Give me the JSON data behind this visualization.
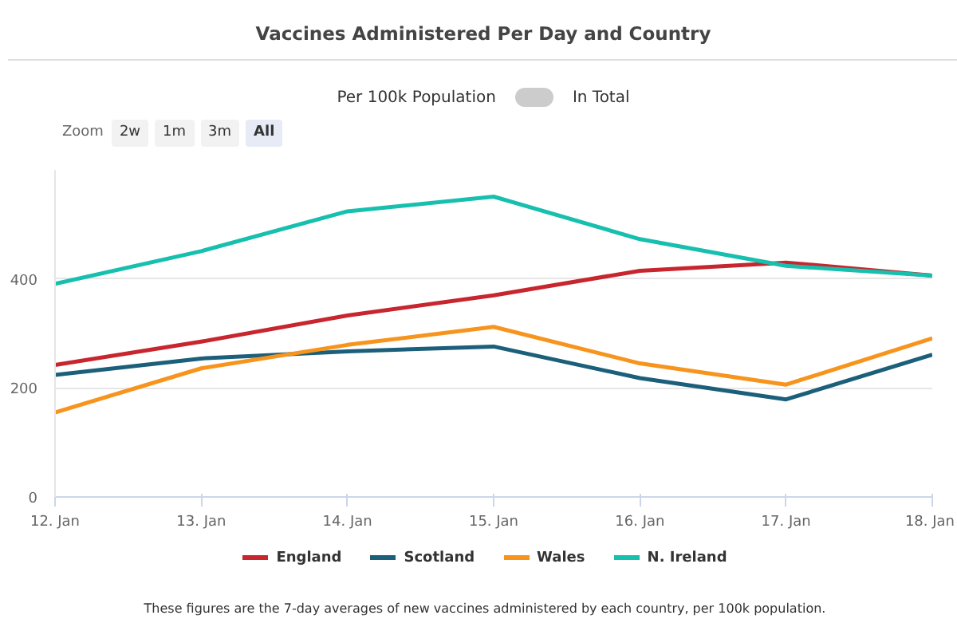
{
  "chart_data": {
    "type": "line",
    "title": "Vaccines Administered Per Day and Country",
    "categories": [
      "12. Jan",
      "13. Jan",
      "14. Jan",
      "15. Jan",
      "16. Jan",
      "17. Jan",
      "18. Jan"
    ],
    "series": [
      {
        "name": "England",
        "color": "#c8262e",
        "values": [
          242,
          285,
          333,
          370,
          415,
          430,
          406
        ]
      },
      {
        "name": "Scotland",
        "color": "#1b5f7a",
        "values": [
          224,
          254,
          267,
          276,
          218,
          179,
          261
        ]
      },
      {
        "name": "Wales",
        "color": "#f7941d",
        "values": [
          155,
          236,
          279,
          312,
          245,
          206,
          291
        ]
      },
      {
        "name": "N. Ireland",
        "color": "#16bfae",
        "values": [
          391,
          451,
          524,
          551,
          473,
          424,
          406
        ]
      }
    ],
    "ylim": [
      0,
      600
    ],
    "yticks": [
      0,
      200,
      400
    ],
    "grid": "y",
    "legend": "bottom",
    "line_style": "solid",
    "annotations": [
      "Per 100k Population",
      "In Total",
      "Zoom",
      "2w",
      "1m",
      "3m",
      "All",
      "These figures are the 7-day averages of new vaccines administered by each country, per 100k population."
    ]
  }
}
